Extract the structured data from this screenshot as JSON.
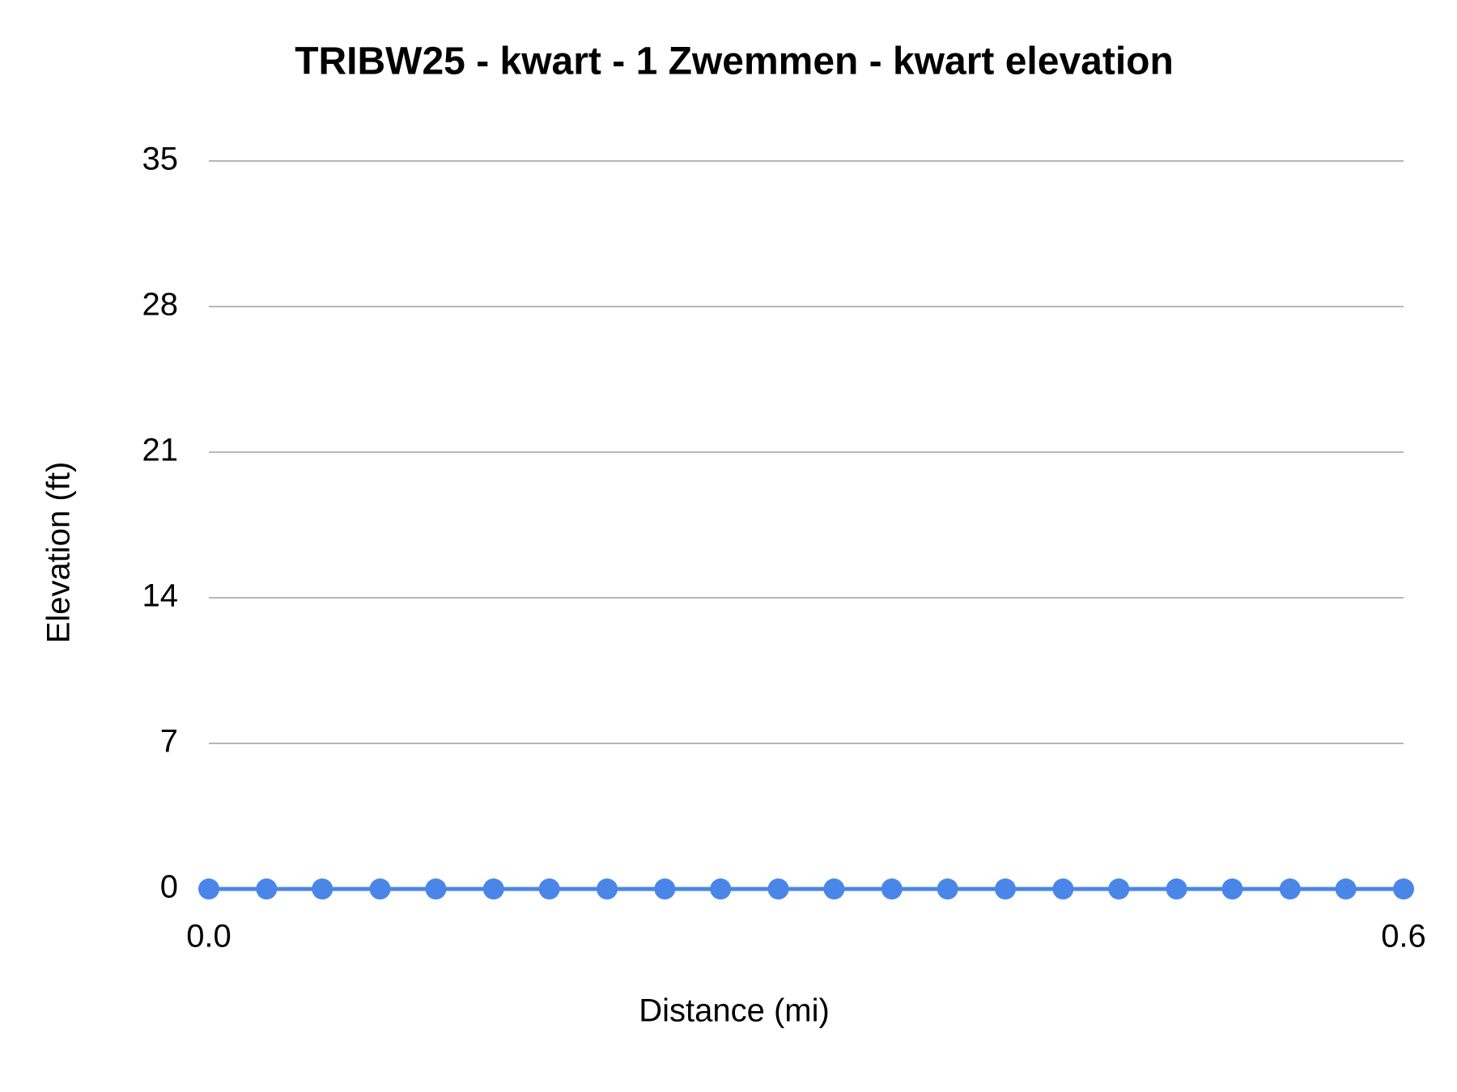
{
  "chart_data": {
    "type": "line",
    "title": "TRIBW25 - kwart - 1 Zwemmen - kwart elevation",
    "x_label": "Distance (mi)",
    "y_label": "Elevation (ft)",
    "x": [
      0,
      0.029,
      0.057,
      0.086,
      0.114,
      0.143,
      0.171,
      0.2,
      0.229,
      0.257,
      0.286,
      0.314,
      0.343,
      0.371,
      0.4,
      0.429,
      0.457,
      0.486,
      0.514,
      0.543,
      0.571,
      0.6
    ],
    "values": [
      0,
      0,
      0,
      0,
      0,
      0,
      0,
      0,
      0,
      0,
      0,
      0,
      0,
      0,
      0,
      0,
      0,
      0,
      0,
      0,
      0,
      0
    ],
    "color": "#4a86e8",
    "xlim": [
      0,
      0.6
    ],
    "xticks": [
      {
        "value": 0,
        "label": "0.0"
      },
      {
        "value": 0.6,
        "label": "0.6"
      }
    ],
    "ylim": [
      0,
      35
    ],
    "yticks": [
      0,
      7,
      14,
      21,
      28,
      35
    ],
    "grid": true
  }
}
